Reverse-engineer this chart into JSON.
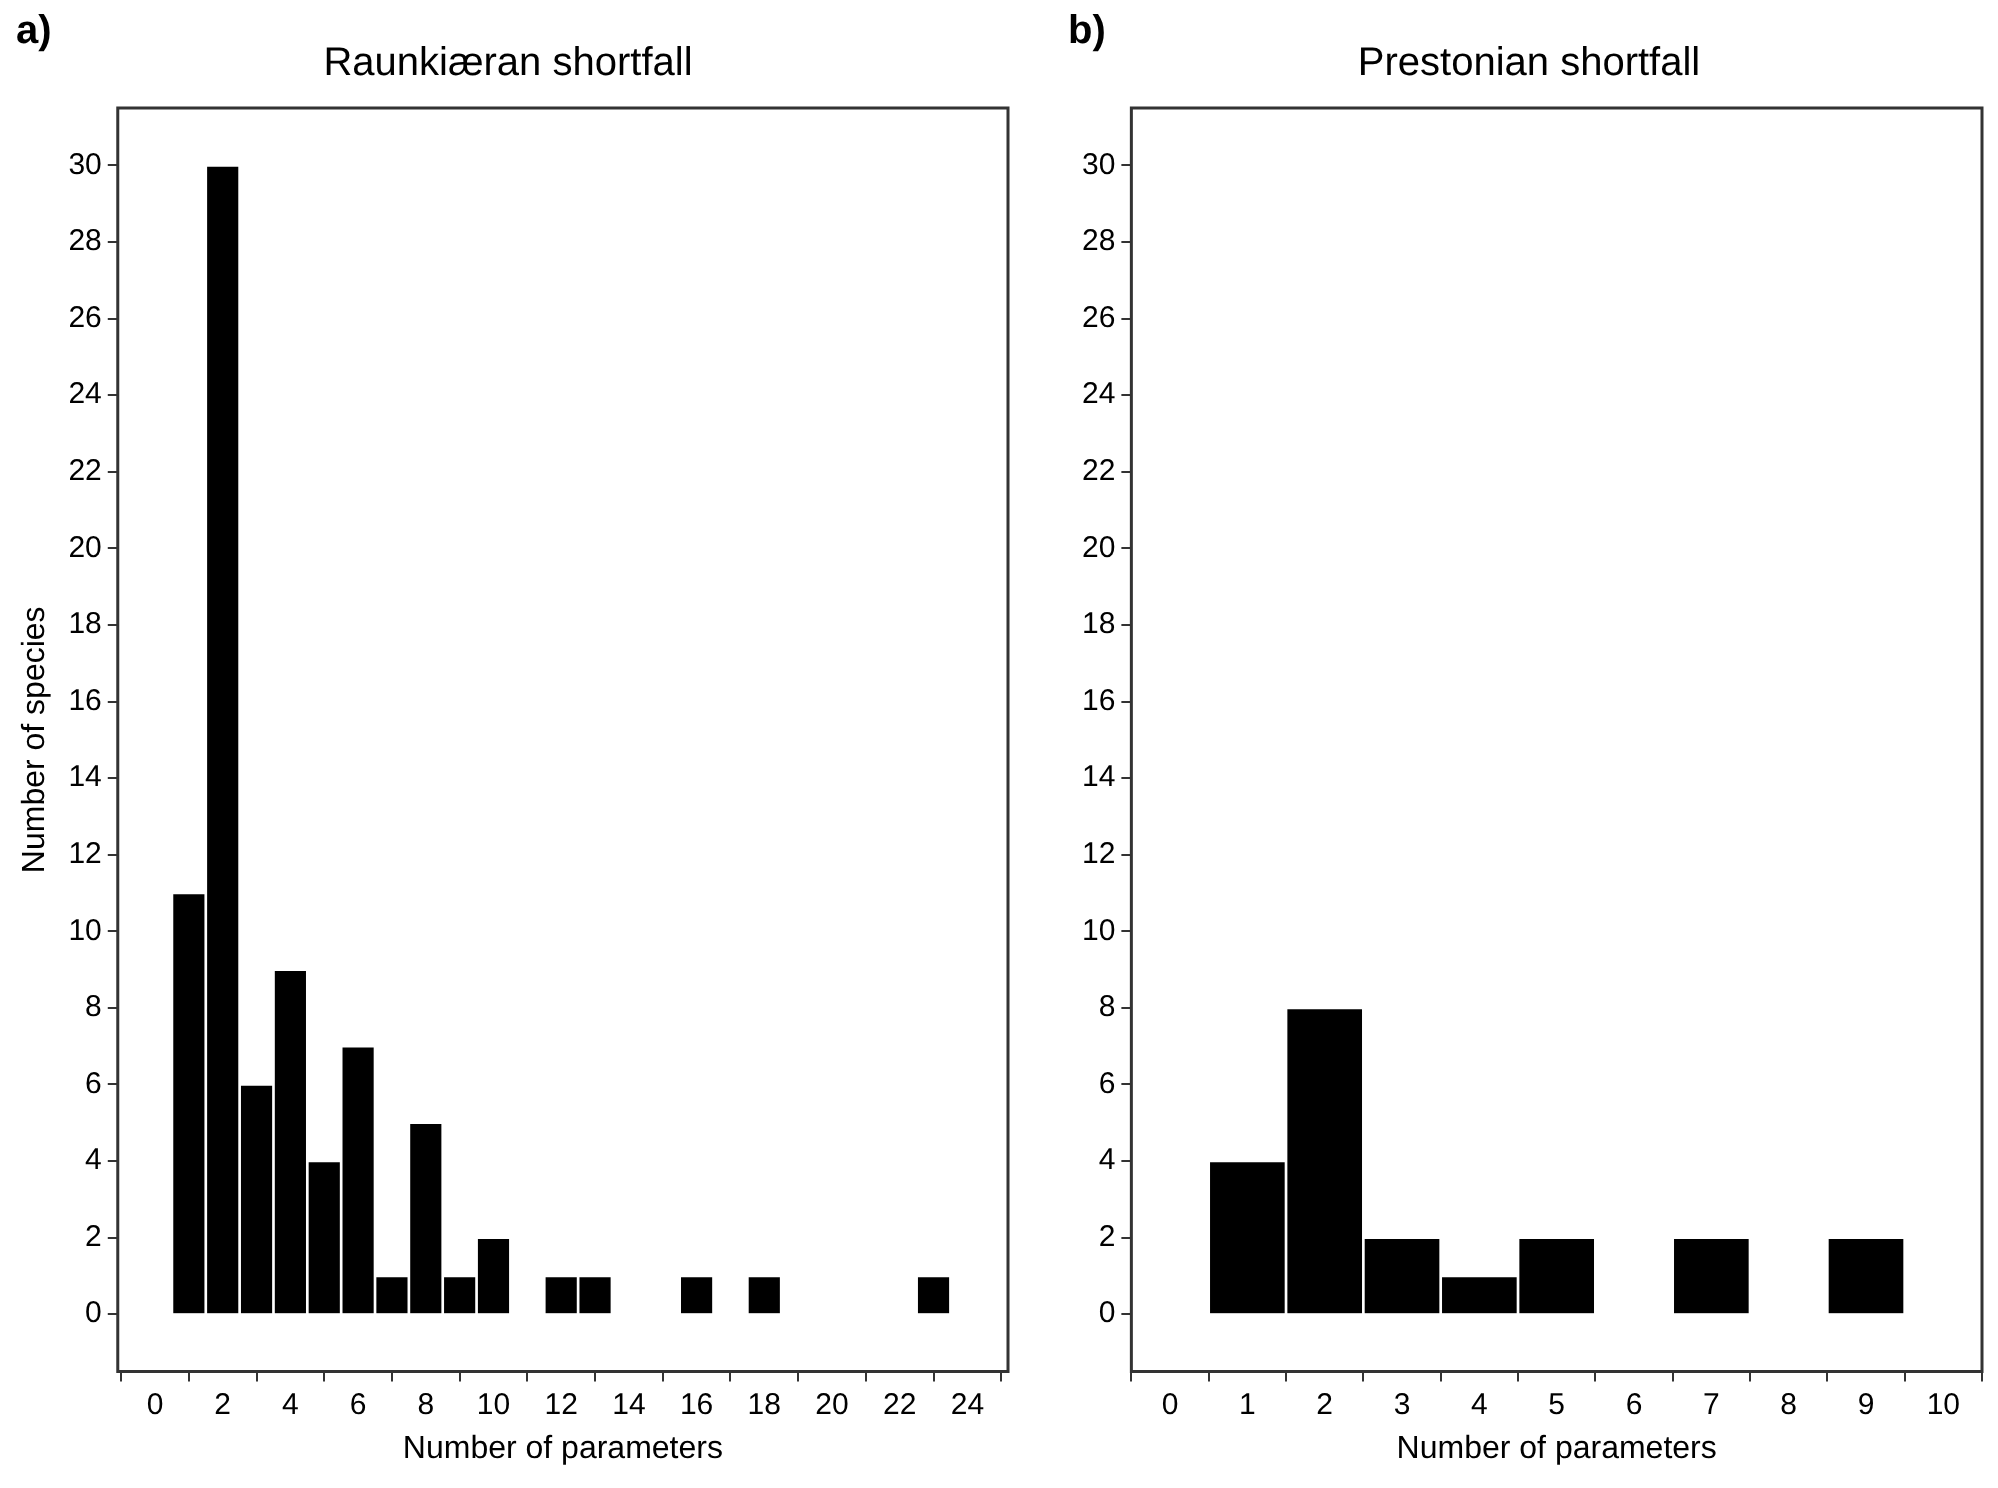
{
  "chart_data": [
    {
      "type": "histogram",
      "title": "Raunkiæran shortfall",
      "xlabel": "Number of parameters",
      "ylabel": "Number of species",
      "annotations": [
        "a)"
      ],
      "bins": [
        0.5,
        1.5,
        2.5,
        3.5,
        4.5,
        5.5,
        6.5,
        7.5,
        8.5,
        9.5,
        10.5,
        11.5,
        12.5,
        13.5,
        14.5,
        15.5,
        16.5,
        17.5,
        18.5,
        19.5,
        20.5,
        21.5,
        22.5,
        23.5
      ],
      "values": [
        11,
        30,
        6,
        9,
        4,
        7,
        1,
        5,
        1,
        2,
        0,
        1,
        1,
        0,
        0,
        1,
        0,
        1,
        0,
        0,
        0,
        0,
        1
      ],
      "color": "#000000",
      "xlim": [
        -1.1,
        25.2
      ],
      "xticks": [
        0,
        2,
        4,
        6,
        8,
        10,
        12,
        14,
        16,
        18,
        20,
        22,
        24
      ],
      "ylim": [
        -1.5,
        31.5
      ],
      "yticks": [
        0,
        2,
        4,
        6,
        8,
        10,
        12,
        14,
        16,
        18,
        20,
        22,
        24,
        26,
        28,
        30
      ],
      "grid": false,
      "legend": false
    },
    {
      "type": "histogram",
      "title": "Prestonian shortfall",
      "xlabel": "Number of parameters",
      "annotations": [
        "b)"
      ],
      "bins": [
        0.5,
        1.5,
        2.5,
        3.5,
        4.5,
        5.5,
        6.5,
        7.5,
        8.5,
        9.5
      ],
      "values": [
        4,
        8,
        2,
        1,
        2,
        0,
        2,
        0,
        2
      ],
      "color": "#000000",
      "xlim": [
        -0.5,
        10.5
      ],
      "xticks": [
        0,
        1,
        2,
        3,
        4,
        5,
        6,
        7,
        8,
        9,
        10
      ],
      "ylim": [
        -1.5,
        31.5
      ],
      "yticks": [
        0,
        2,
        4,
        6,
        8,
        10,
        12,
        14,
        16,
        18,
        20,
        22,
        24,
        26,
        28,
        30
      ],
      "grid": false,
      "legend": false
    }
  ]
}
